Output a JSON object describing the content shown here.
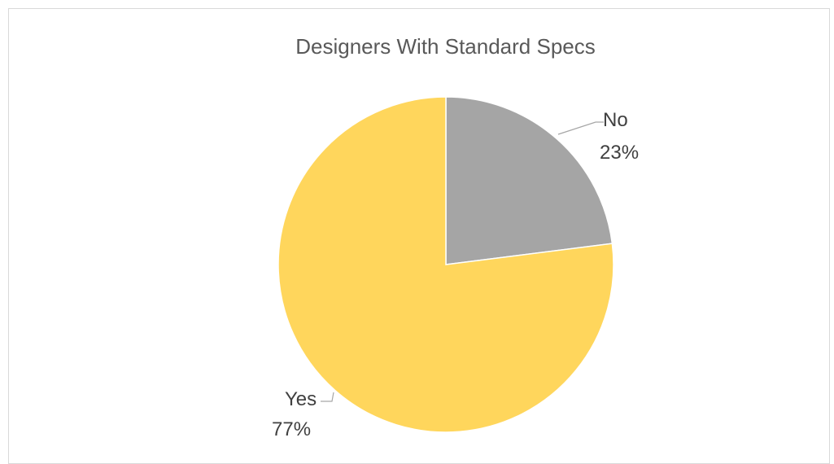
{
  "chart_data": {
    "type": "pie",
    "title": "Designers With Standard Specs",
    "categories": [
      "No",
      "Yes"
    ],
    "values": [
      23,
      77
    ],
    "labels": [
      {
        "category": "No",
        "percent": "23%"
      },
      {
        "category": "Yes",
        "percent": "77%"
      }
    ],
    "colors": [
      "#a5a5a5",
      "#ffd65c"
    ],
    "legend": "none"
  }
}
